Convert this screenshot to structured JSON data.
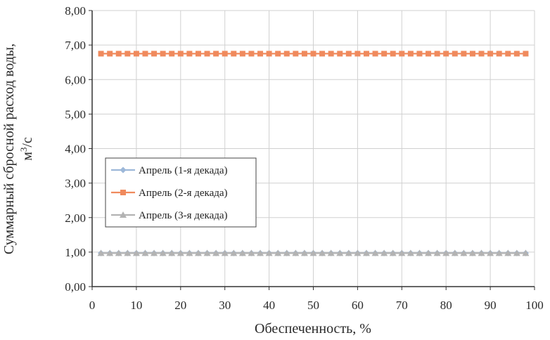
{
  "chart_data": {
    "type": "line",
    "xlabel": "Обеспеченность, %",
    "ylabel_line1": "Суммарный сбросной расход воды,",
    "ylabel_line2_base": "м",
    "ylabel_line2_sup": "3",
    "ylabel_line2_tail": "/с",
    "xlim": [
      0,
      100
    ],
    "ylim": [
      0,
      8
    ],
    "x_ticks": [
      "0",
      "10",
      "20",
      "30",
      "40",
      "50",
      "60",
      "70",
      "80",
      "90",
      "100"
    ],
    "y_ticks": [
      "0,00",
      "1,00",
      "2,00",
      "3,00",
      "4,00",
      "5,00",
      "6,00",
      "7,00",
      "8,00"
    ],
    "grid": true,
    "legend_position": "left-middle",
    "x": [
      2,
      4,
      6,
      8,
      10,
      12,
      14,
      16,
      18,
      20,
      22,
      24,
      26,
      28,
      30,
      32,
      34,
      36,
      38,
      40,
      42,
      44,
      46,
      48,
      50,
      52,
      54,
      56,
      58,
      60,
      62,
      64,
      66,
      68,
      70,
      72,
      74,
      76,
      78,
      80,
      82,
      84,
      86,
      88,
      90,
      92,
      94,
      96,
      98
    ],
    "series": [
      {
        "name": "Апрель (1-я декада)",
        "constant": 0.97,
        "color": "#9db8d9",
        "marker": "diamond"
      },
      {
        "name": "Апрель (2-я декада)",
        "constant": 6.75,
        "color": "#f08a5d",
        "marker": "square"
      },
      {
        "name": "Апрель (3-я декада)",
        "constant": 0.97,
        "color": "#b3b3b3",
        "marker": "triangle"
      }
    ]
  }
}
